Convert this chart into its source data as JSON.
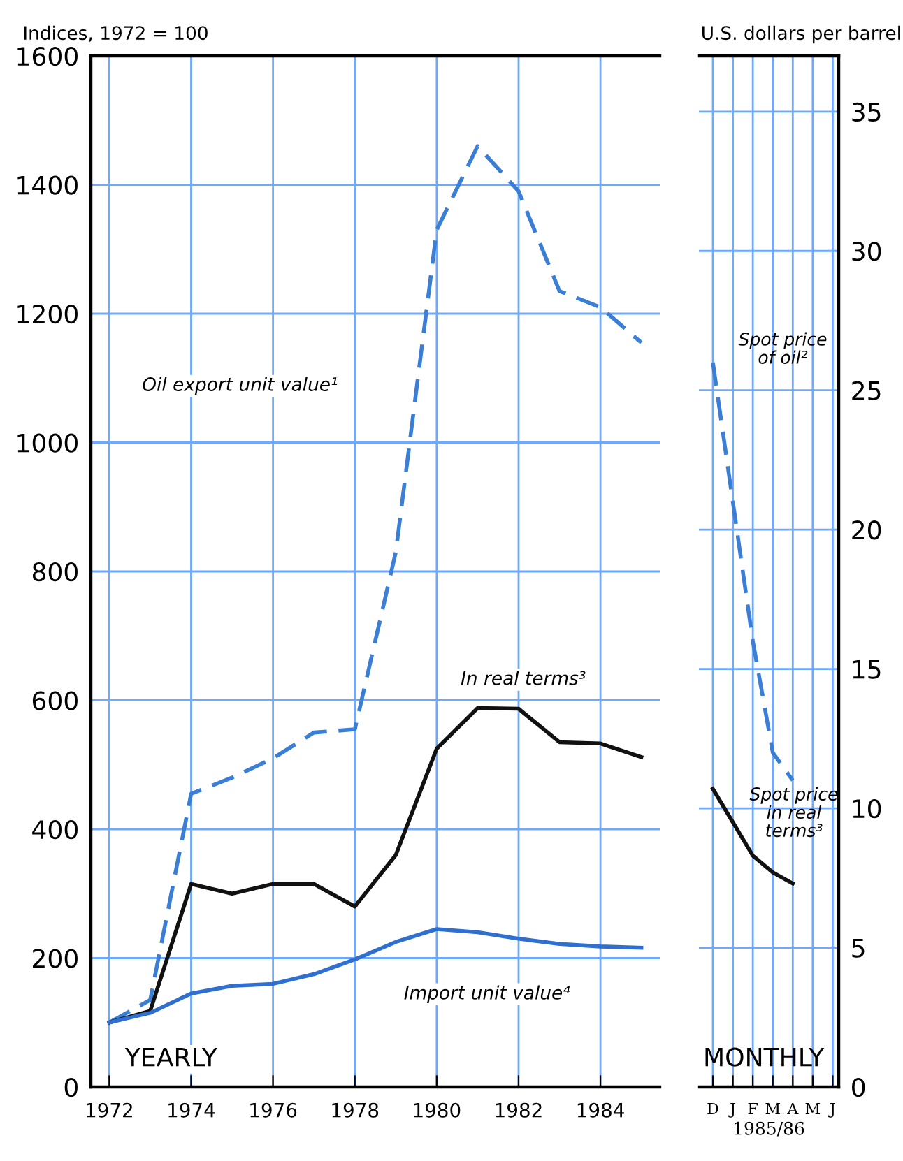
{
  "chart_data": [
    {
      "type": "line",
      "ylabel": "Indices, 1972 = 100",
      "x": [
        1972,
        1973,
        1974,
        1975,
        1976,
        1977,
        1978,
        1979,
        1980,
        1981,
        1982,
        1983,
        1984,
        1985
      ],
      "series": [
        {
          "color": "#3a7fd5",
          "line_style": "dashed",
          "values": [
            100,
            135,
            455,
            480,
            510,
            550,
            555,
            830,
            1330,
            1460,
            1390,
            1235,
            1210,
            1155
          ]
        },
        {
          "color": "#111111",
          "line_style": "solid",
          "values": [
            100,
            118,
            315,
            300,
            315,
            315,
            280,
            360,
            525,
            588,
            587,
            535,
            533,
            512
          ]
        },
        {
          "color": "#2f6fd0",
          "line_style": "solid",
          "values": [
            100,
            115,
            145,
            157,
            160,
            175,
            198,
            225,
            245,
            240,
            230,
            222,
            218,
            216
          ]
        }
      ],
      "xlim": [
        1971.55,
        1985.45
      ],
      "xticks": [
        1972,
        1974,
        1976,
        1978,
        1980,
        1982,
        1984
      ],
      "ylim": [
        0,
        1600
      ],
      "yticks": [
        0,
        200,
        400,
        600,
        800,
        1000,
        1200,
        1400,
        1600
      ],
      "grid": true,
      "marker": "none",
      "annotations": [
        "YEARLY",
        "Oil export unit value¹",
        "In real terms³",
        "Import unit value⁴"
      ]
    },
    {
      "type": "line",
      "ylabel": "U.S. dollars per barrel",
      "xlabel": "1985/86",
      "categories": [
        "D",
        "J",
        "F",
        "M",
        "A",
        "M",
        "J"
      ],
      "series": [
        {
          "color": "#3a7fd5",
          "line_style": "dashed",
          "values": [
            26,
            21,
            16,
            12,
            11,
            null,
            null
          ]
        },
        {
          "color": "#111111",
          "line_style": "solid",
          "values": [
            10.7,
            9.5,
            8.3,
            7.7,
            7.3,
            null,
            null
          ]
        }
      ],
      "ylim": [
        0,
        37
      ],
      "yticks": [
        0,
        5,
        10,
        15,
        20,
        25,
        30,
        35
      ],
      "grid": true,
      "marker": "none",
      "annotations": [
        "MONTHLY",
        "Spot price\nof oil²",
        "Spot price\nin real\nterms³"
      ]
    }
  ]
}
